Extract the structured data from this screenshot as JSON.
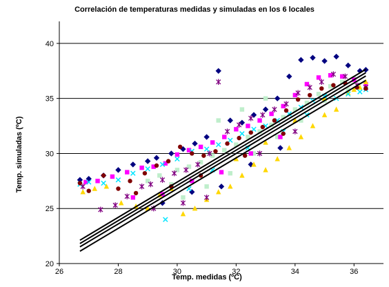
{
  "chart_data": {
    "type": "scatter",
    "title": "Correlación de temperaturas medidas y simuladas en los 6 locales",
    "xlabel": "Temp. medidas (ºC)",
    "ylabel": "Temp. simuladas (ºC)",
    "xlim": [
      26,
      37
    ],
    "ylim": [
      20,
      42
    ],
    "x_ticks": [
      "26",
      "28",
      "30",
      "32",
      "34",
      "36"
    ],
    "y_ticks": [
      "20",
      "25",
      "30",
      "35",
      "40"
    ],
    "grid": "horizontal",
    "series": [
      {
        "color": "#000080",
        "marker": "diamond",
        "points": [
          [
            26.7,
            27.6
          ],
          [
            27.0,
            27.7
          ],
          [
            27.5,
            28.0
          ],
          [
            28.0,
            28.5
          ],
          [
            28.5,
            29.0
          ],
          [
            29.0,
            29.3
          ],
          [
            29.3,
            29.6
          ],
          [
            29.8,
            30.0
          ],
          [
            30.2,
            30.4
          ],
          [
            30.6,
            30.9
          ],
          [
            31.0,
            31.5
          ],
          [
            31.4,
            37.5
          ],
          [
            31.8,
            33.0
          ],
          [
            32.2,
            32.8
          ],
          [
            32.6,
            33.5
          ],
          [
            33.0,
            34.0
          ],
          [
            33.4,
            35.0
          ],
          [
            33.8,
            37.0
          ],
          [
            34.2,
            38.5
          ],
          [
            34.6,
            38.7
          ],
          [
            35.0,
            38.4
          ],
          [
            35.4,
            38.8
          ],
          [
            35.8,
            38.0
          ],
          [
            36.2,
            37.5
          ],
          [
            36.4,
            37.6
          ],
          [
            29.5,
            25.5
          ],
          [
            30.5,
            26.5
          ],
          [
            31.5,
            27.0
          ],
          [
            32.5,
            29.0
          ],
          [
            33.5,
            30.5
          ]
        ]
      },
      {
        "color": "#ff00ff",
        "marker": "square",
        "points": [
          [
            26.9,
            27.4
          ],
          [
            27.3,
            27.5
          ],
          [
            27.8,
            27.9
          ],
          [
            28.3,
            28.3
          ],
          [
            28.8,
            28.7
          ],
          [
            29.2,
            28.8
          ],
          [
            29.6,
            29.1
          ],
          [
            30.0,
            29.9
          ],
          [
            30.4,
            30.3
          ],
          [
            30.8,
            30.6
          ],
          [
            31.2,
            31.0
          ],
          [
            31.6,
            31.5
          ],
          [
            32.0,
            32.2
          ],
          [
            32.4,
            32.5
          ],
          [
            32.8,
            33.0
          ],
          [
            33.2,
            33.6
          ],
          [
            33.6,
            34.3
          ],
          [
            34.0,
            35.3
          ],
          [
            34.4,
            36.3
          ],
          [
            34.8,
            36.9
          ],
          [
            35.2,
            37.1
          ],
          [
            35.6,
            37.0
          ],
          [
            36.0,
            36.7
          ],
          [
            36.4,
            36.3
          ],
          [
            28.5,
            26.0
          ],
          [
            29.5,
            26.3
          ],
          [
            30.5,
            27.5
          ],
          [
            31.5,
            28.3
          ],
          [
            32.5,
            30.0
          ],
          [
            33.5,
            31.5
          ]
        ]
      },
      {
        "color": "#ffd700",
        "marker": "triangle",
        "points": [
          [
            26.8,
            26.5
          ],
          [
            27.2,
            26.8
          ],
          [
            27.6,
            27.0
          ],
          [
            28.1,
            25.5
          ],
          [
            28.6,
            25.2
          ],
          [
            29.0,
            25.0
          ],
          [
            29.4,
            26.2
          ],
          [
            29.8,
            26.8
          ],
          [
            30.2,
            24.5
          ],
          [
            30.6,
            25.0
          ],
          [
            31.0,
            25.8
          ],
          [
            31.4,
            26.5
          ],
          [
            31.8,
            27.0
          ],
          [
            32.2,
            28.0
          ],
          [
            32.6,
            29.0
          ],
          [
            33.0,
            28.5
          ],
          [
            33.4,
            29.5
          ],
          [
            33.8,
            30.5
          ],
          [
            34.2,
            31.5
          ],
          [
            34.6,
            32.5
          ],
          [
            35.0,
            33.5
          ],
          [
            35.4,
            34.0
          ],
          [
            35.8,
            35.5
          ],
          [
            36.2,
            36.0
          ],
          [
            36.4,
            36.5
          ],
          [
            32.0,
            29.5
          ],
          [
            33.0,
            31.0
          ],
          [
            34.0,
            33.0
          ],
          [
            35.0,
            35.0
          ],
          [
            36.0,
            35.8
          ]
        ]
      },
      {
        "color": "#00e5ff",
        "marker": "x",
        "points": [
          [
            26.7,
            27.2
          ],
          [
            27.0,
            27.4
          ],
          [
            27.5,
            27.3
          ],
          [
            28.0,
            27.6
          ],
          [
            28.5,
            28.2
          ],
          [
            29.0,
            28.6
          ],
          [
            29.5,
            29.0
          ],
          [
            30.0,
            29.5
          ],
          [
            30.5,
            30.2
          ],
          [
            31.0,
            30.4
          ],
          [
            31.4,
            30.8
          ],
          [
            31.8,
            31.2
          ],
          [
            32.2,
            31.8
          ],
          [
            32.6,
            32.2
          ],
          [
            33.0,
            32.5
          ],
          [
            33.4,
            33.0
          ],
          [
            33.8,
            33.6
          ],
          [
            34.2,
            34.2
          ],
          [
            34.6,
            34.8
          ],
          [
            35.0,
            35.2
          ],
          [
            35.4,
            35.0
          ],
          [
            35.8,
            35.4
          ],
          [
            36.2,
            35.6
          ],
          [
            36.4,
            35.8
          ],
          [
            29.6,
            24.0
          ],
          [
            30.4,
            26.8
          ],
          [
            31.2,
            28.5
          ],
          [
            32.4,
            30.5
          ],
          [
            33.6,
            32.0
          ],
          [
            34.4,
            33.5
          ]
        ]
      },
      {
        "color": "#800080",
        "marker": "star",
        "points": [
          [
            26.8,
            27.0
          ],
          [
            27.4,
            24.9
          ],
          [
            27.9,
            25.3
          ],
          [
            28.3,
            26.1
          ],
          [
            28.8,
            27.0
          ],
          [
            29.1,
            27.2
          ],
          [
            29.5,
            27.6
          ],
          [
            29.9,
            28.2
          ],
          [
            30.3,
            28.5
          ],
          [
            30.7,
            29.0
          ],
          [
            31.1,
            30.0
          ],
          [
            31.4,
            36.5
          ],
          [
            31.7,
            32.0
          ],
          [
            32.1,
            32.6
          ],
          [
            32.5,
            33.2
          ],
          [
            32.9,
            33.5
          ],
          [
            33.3,
            34.0
          ],
          [
            33.7,
            34.5
          ],
          [
            34.1,
            35.5
          ],
          [
            34.5,
            36.0
          ],
          [
            34.9,
            36.5
          ],
          [
            35.3,
            37.2
          ],
          [
            35.7,
            37.0
          ],
          [
            36.1,
            36.2
          ],
          [
            36.4,
            36.0
          ],
          [
            29.2,
            25.0
          ],
          [
            30.2,
            25.5
          ],
          [
            31.0,
            26.0
          ],
          [
            32.8,
            30.0
          ],
          [
            34.0,
            32.0
          ]
        ]
      },
      {
        "color": "#800000",
        "marker": "circle",
        "points": [
          [
            26.7,
            27.3
          ],
          [
            27.0,
            26.6
          ],
          [
            27.5,
            28.0
          ],
          [
            28.0,
            26.8
          ],
          [
            28.4,
            27.5
          ],
          [
            28.9,
            28.2
          ],
          [
            29.3,
            28.9
          ],
          [
            29.7,
            29.3
          ],
          [
            30.1,
            30.6
          ],
          [
            30.5,
            30.0
          ],
          [
            30.9,
            29.8
          ],
          [
            31.3,
            30.2
          ],
          [
            31.7,
            30.9
          ],
          [
            32.1,
            31.4
          ],
          [
            32.5,
            31.9
          ],
          [
            32.9,
            32.4
          ],
          [
            33.3,
            33.0
          ],
          [
            33.7,
            33.9
          ],
          [
            34.1,
            34.9
          ],
          [
            34.5,
            35.3
          ],
          [
            34.9,
            35.9
          ],
          [
            35.3,
            36.2
          ],
          [
            35.7,
            36.4
          ],
          [
            36.1,
            36.0
          ],
          [
            36.4,
            35.9
          ],
          [
            28.6,
            26.4
          ],
          [
            29.8,
            27.0
          ],
          [
            30.8,
            28.0
          ],
          [
            32.3,
            29.8
          ],
          [
            33.6,
            31.8
          ]
        ]
      },
      {
        "color": "#bfeecb",
        "marker": "square",
        "points": [
          [
            29.0,
            27.5
          ],
          [
            29.4,
            28.0
          ],
          [
            29.8,
            27.2
          ],
          [
            30.0,
            28.5
          ],
          [
            30.4,
            28.8
          ],
          [
            30.8,
            29.2
          ],
          [
            31.2,
            29.8
          ],
          [
            31.6,
            30.3
          ],
          [
            32.0,
            30.8
          ],
          [
            32.4,
            31.5
          ],
          [
            32.8,
            32.0
          ],
          [
            33.2,
            32.6
          ],
          [
            33.6,
            33.3
          ],
          [
            34.0,
            34.0
          ],
          [
            34.4,
            34.6
          ],
          [
            34.8,
            35.4
          ],
          [
            35.2,
            36.1
          ],
          [
            35.6,
            36.5
          ],
          [
            36.0,
            36.8
          ],
          [
            30.2,
            26.0
          ],
          [
            31.0,
            27.0
          ],
          [
            31.8,
            28.2
          ],
          [
            32.6,
            30.0
          ],
          [
            33.4,
            31.5
          ],
          [
            34.2,
            33.0
          ],
          [
            35.0,
            34.8
          ],
          [
            35.8,
            35.8
          ],
          [
            31.4,
            33.0
          ],
          [
            32.2,
            34.0
          ],
          [
            33.0,
            35.0
          ]
        ]
      }
    ],
    "trendlines": [
      {
        "slope": 1.6,
        "intercept": -20.6
      },
      {
        "slope": 1.6,
        "intercept": -20.9
      },
      {
        "slope": 1.6,
        "intercept": -21.2
      },
      {
        "slope": 1.6,
        "intercept": -21.6
      }
    ]
  }
}
